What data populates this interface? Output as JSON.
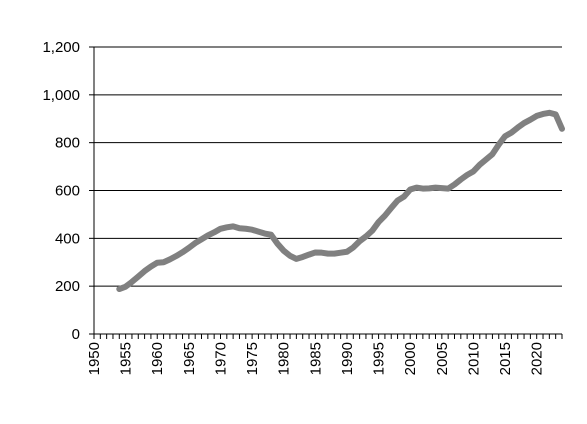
{
  "chart_data": {
    "type": "line",
    "title": "",
    "xlabel": "",
    "ylabel": "",
    "xlim": [
      1950,
      2024
    ],
    "ylim": [
      0,
      1200
    ],
    "grid": "horizontal",
    "legend": "none",
    "colors": {
      "series": "#808080",
      "grid": "#000000",
      "axis": "#000000"
    },
    "y_ticks": [
      {
        "value": 0,
        "label": "0"
      },
      {
        "value": 200,
        "label": "200"
      },
      {
        "value": 400,
        "label": "400"
      },
      {
        "value": 600,
        "label": "600"
      },
      {
        "value": 800,
        "label": "800"
      },
      {
        "value": 1000,
        "label": "1,000"
      },
      {
        "value": 1200,
        "label": "1,200"
      }
    ],
    "x_ticks": [
      {
        "value": 1950,
        "label": "1950"
      },
      {
        "value": 1955,
        "label": "1955"
      },
      {
        "value": 1960,
        "label": "1960"
      },
      {
        "value": 1965,
        "label": "1965"
      },
      {
        "value": 1970,
        "label": "1970"
      },
      {
        "value": 1975,
        "label": "1975"
      },
      {
        "value": 1980,
        "label": "1980"
      },
      {
        "value": 1985,
        "label": "1985"
      },
      {
        "value": 1990,
        "label": "1990"
      },
      {
        "value": 1995,
        "label": "1995"
      },
      {
        "value": 2000,
        "label": "2000"
      },
      {
        "value": 2005,
        "label": "2005"
      },
      {
        "value": 2010,
        "label": "2010"
      },
      {
        "value": 2015,
        "label": "2015"
      },
      {
        "value": 2020,
        "label": "2020"
      }
    ],
    "series": [
      {
        "x": [
          1954,
          1955,
          1956,
          1957,
          1958,
          1959,
          1960,
          1961,
          1962,
          1963,
          1964,
          1965,
          1966,
          1967,
          1968,
          1969,
          1970,
          1971,
          1972,
          1973,
          1974,
          1975,
          1976,
          1977,
          1978,
          1979,
          1980,
          1981,
          1982,
          1983,
          1984,
          1985,
          1986,
          1987,
          1988,
          1989,
          1990,
          1991,
          1992,
          1993,
          1994,
          1995,
          1996,
          1997,
          1998,
          1999,
          2000,
          2001,
          2002,
          2003,
          2004,
          2005,
          2006,
          2007,
          2008,
          2009,
          2010,
          2011,
          2012,
          2013,
          2014,
          2015,
          2016,
          2017,
          2018,
          2019,
          2020,
          2021,
          2022,
          2023,
          2024
        ],
        "values": [
          188,
          198,
          218,
          240,
          263,
          282,
          298,
          300,
          312,
          326,
          342,
          360,
          380,
          396,
          412,
          425,
          440,
          446,
          450,
          442,
          440,
          436,
          428,
          420,
          415,
          378,
          348,
          327,
          314,
          322,
          332,
          341,
          340,
          336,
          336,
          340,
          344,
          362,
          388,
          408,
          432,
          468,
          495,
          527,
          558,
          574,
          604,
          612,
          608,
          609,
          612,
          610,
          608,
          625,
          646,
          665,
          680,
          708,
          730,
          752,
          792,
          827,
          842,
          863,
          882,
          896,
          912,
          920,
          925,
          918,
          858
        ]
      }
    ]
  }
}
